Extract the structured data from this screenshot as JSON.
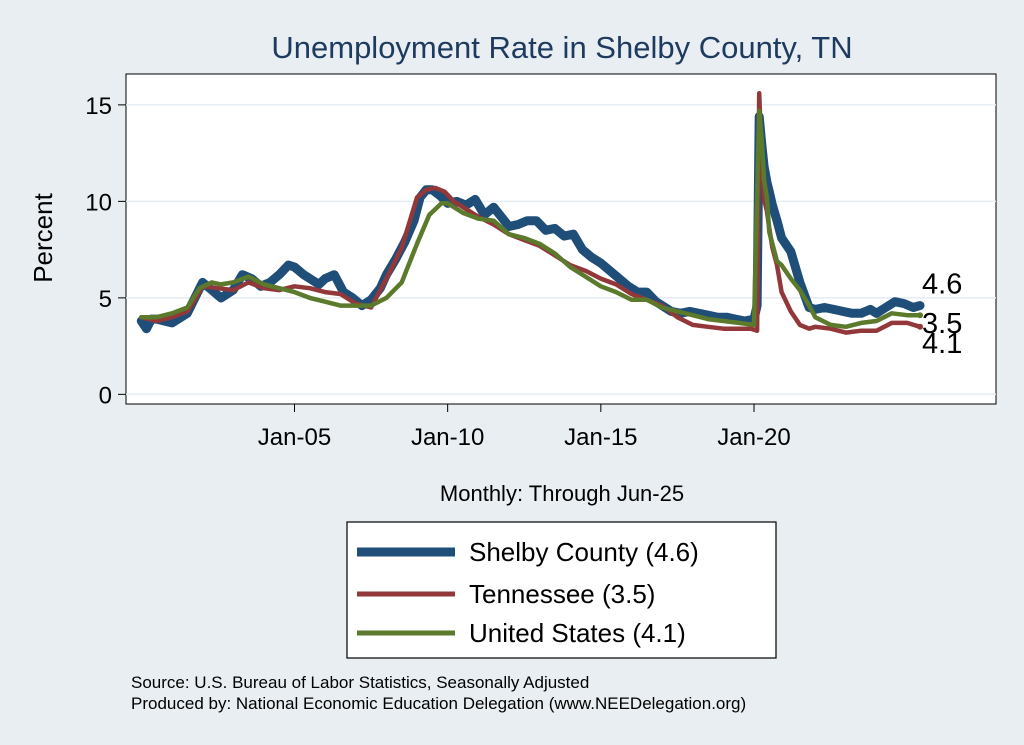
{
  "chart_data": {
    "type": "line",
    "title": "Unemployment Rate in Shelby  County, TN",
    "xlabel": "Monthly: Through Jun-25",
    "ylabel": "Percent",
    "ylim": [
      -0.5,
      16.6
    ],
    "xlim": [
      1999.5,
      2027.9
    ],
    "yticks": [
      0,
      5,
      10,
      15
    ],
    "xticks": [
      {
        "value": 2005,
        "label": "Jan-05"
      },
      {
        "value": 2010,
        "label": "Jan-10"
      },
      {
        "value": 2015,
        "label": "Jan-15"
      },
      {
        "value": 2020,
        "label": "Jan-20"
      }
    ],
    "grid": true,
    "series": [
      {
        "name": "Shelby  County",
        "legend_label": "Shelby  County (4.6)",
        "end_label": "4.6",
        "color": "#1f4e79",
        "x": [
          2000.0,
          2000.17,
          2000.33,
          2000.5,
          2001.0,
          2001.5,
          2001.75,
          2002.0,
          2002.3,
          2002.6,
          2003.0,
          2003.3,
          2003.6,
          2003.9,
          2004.2,
          2004.5,
          2004.8,
          2005.0,
          2005.3,
          2005.6,
          2005.8,
          2006.0,
          2006.3,
          2006.6,
          2006.9,
          2007.2,
          2007.5,
          2007.8,
          2008.0,
          2008.3,
          2008.6,
          2008.9,
          2009.1,
          2009.3,
          2009.5,
          2009.75,
          2010.0,
          2010.3,
          2010.6,
          2010.9,
          2011.2,
          2011.5,
          2011.8,
          2012.0,
          2012.3,
          2012.6,
          2012.9,
          2013.2,
          2013.5,
          2013.8,
          2014.1,
          2014.4,
          2014.7,
          2015.0,
          2015.3,
          2015.6,
          2015.9,
          2016.2,
          2016.5,
          2016.8,
          2017.0,
          2017.3,
          2017.6,
          2017.9,
          2018.2,
          2018.5,
          2018.8,
          2019.1,
          2019.4,
          2019.7,
          2020.0,
          2020.1,
          2020.17,
          2020.25,
          2020.33,
          2020.42,
          2020.5,
          2020.6,
          2020.75,
          2020.9,
          2021.2,
          2021.5,
          2021.8,
          2022.0,
          2022.3,
          2022.6,
          2022.9,
          2023.2,
          2023.5,
          2023.8,
          2024.0,
          2024.3,
          2024.6,
          2024.9,
          2025.2,
          2025.42
        ],
        "values": [
          3.8,
          3.4,
          3.9,
          3.9,
          3.7,
          4.2,
          5.0,
          5.8,
          5.4,
          5.0,
          5.4,
          6.2,
          6.0,
          5.6,
          5.8,
          6.2,
          6.7,
          6.6,
          6.2,
          5.9,
          5.7,
          6.0,
          6.2,
          5.3,
          5.0,
          4.6,
          4.9,
          5.5,
          6.2,
          7.0,
          7.9,
          9.0,
          10.2,
          10.6,
          10.6,
          10.3,
          9.9,
          10.0,
          9.8,
          10.1,
          9.3,
          9.7,
          9.1,
          8.7,
          8.8,
          9.0,
          9.0,
          8.5,
          8.6,
          8.2,
          8.3,
          7.5,
          7.1,
          6.8,
          6.4,
          6.0,
          5.6,
          5.3,
          5.3,
          4.8,
          4.6,
          4.3,
          4.2,
          4.3,
          4.2,
          4.1,
          4.0,
          4.0,
          3.9,
          3.8,
          3.9,
          4.6,
          14.4,
          13.0,
          11.8,
          11.0,
          10.5,
          9.8,
          9.0,
          8.1,
          7.4,
          5.8,
          4.5,
          4.4,
          4.5,
          4.4,
          4.3,
          4.2,
          4.2,
          4.4,
          4.2,
          4.5,
          4.8,
          4.7,
          4.5,
          4.6
        ]
      },
      {
        "name": "Tennessee",
        "legend_label": "Tennessee (3.5)",
        "end_label": "3.5",
        "color": "#93383a",
        "x": [
          2000.0,
          2000.5,
          2001.0,
          2001.5,
          2001.75,
          2002.0,
          2002.5,
          2003.0,
          2003.5,
          2004.0,
          2004.5,
          2005.0,
          2005.5,
          2006.0,
          2006.5,
          2007.0,
          2007.5,
          2008.0,
          2008.5,
          2009.0,
          2009.3,
          2009.6,
          2009.9,
          2010.2,
          2010.5,
          2011.0,
          2011.5,
          2012.0,
          2012.5,
          2013.0,
          2013.5,
          2014.0,
          2014.5,
          2015.0,
          2015.5,
          2016.0,
          2016.5,
          2017.0,
          2017.5,
          2018.0,
          2018.5,
          2019.0,
          2019.5,
          2019.9,
          2020.1,
          2020.17,
          2020.25,
          2020.33,
          2020.42,
          2020.5,
          2020.6,
          2020.75,
          2020.9,
          2021.2,
          2021.5,
          2021.8,
          2022.0,
          2022.5,
          2023.0,
          2023.5,
          2024.0,
          2024.5,
          2025.0,
          2025.42
        ],
        "values": [
          4.0,
          3.8,
          4.0,
          4.3,
          4.9,
          5.6,
          5.5,
          5.4,
          5.8,
          5.5,
          5.4,
          5.6,
          5.5,
          5.3,
          5.2,
          4.7,
          4.5,
          6.0,
          7.6,
          10.2,
          10.6,
          10.7,
          10.5,
          10.0,
          9.7,
          9.2,
          8.8,
          8.3,
          8.0,
          7.7,
          7.2,
          6.7,
          6.4,
          6.0,
          5.7,
          5.2,
          4.9,
          4.6,
          4.0,
          3.6,
          3.5,
          3.4,
          3.4,
          3.4,
          3.3,
          15.6,
          12.2,
          10.1,
          9.5,
          8.6,
          7.6,
          6.7,
          5.3,
          4.3,
          3.6,
          3.4,
          3.5,
          3.4,
          3.2,
          3.3,
          3.3,
          3.7,
          3.7,
          3.5
        ]
      },
      {
        "name": "United States",
        "legend_label": "United States (4.1)",
        "end_label": "4.1",
        "color": "#5b7a2c",
        "x": [
          2000.0,
          2000.5,
          2001.0,
          2001.5,
          2001.9,
          2002.3,
          2002.6,
          2003.0,
          2003.5,
          2004.0,
          2004.5,
          2005.0,
          2005.5,
          2006.0,
          2006.5,
          2007.0,
          2007.5,
          2008.0,
          2008.5,
          2009.0,
          2009.4,
          2009.8,
          2010.0,
          2010.5,
          2011.0,
          2011.5,
          2012.0,
          2012.5,
          2013.0,
          2013.5,
          2014.0,
          2014.5,
          2015.0,
          2015.5,
          2016.0,
          2016.5,
          2017.0,
          2017.5,
          2018.0,
          2018.5,
          2019.0,
          2019.5,
          2020.0,
          2020.17,
          2020.25,
          2020.33,
          2020.42,
          2020.5,
          2020.6,
          2020.75,
          2020.9,
          2021.2,
          2021.5,
          2021.8,
          2022.0,
          2022.5,
          2023.0,
          2023.5,
          2024.0,
          2024.5,
          2025.0,
          2025.42
        ],
        "values": [
          4.0,
          4.0,
          4.2,
          4.5,
          5.5,
          5.8,
          5.7,
          5.8,
          6.1,
          5.7,
          5.5,
          5.3,
          5.0,
          4.8,
          4.6,
          4.6,
          4.6,
          5.0,
          5.8,
          7.8,
          9.3,
          9.9,
          9.9,
          9.4,
          9.1,
          9.0,
          8.3,
          8.1,
          7.8,
          7.3,
          6.6,
          6.1,
          5.6,
          5.3,
          4.9,
          4.9,
          4.5,
          4.3,
          4.1,
          3.9,
          3.8,
          3.7,
          3.6,
          14.7,
          13.2,
          11.1,
          10.2,
          8.4,
          7.8,
          6.9,
          6.7,
          6.0,
          5.4,
          4.6,
          4.0,
          3.6,
          3.5,
          3.7,
          3.8,
          4.2,
          4.1,
          4.1
        ]
      }
    ],
    "annotations": [
      "Source: U.S. Bureau of Labor Statistics, Seasonally Adjusted",
      "Produced by: National Economic Education Delegation (www.NEEDelegation.org)"
    ]
  }
}
